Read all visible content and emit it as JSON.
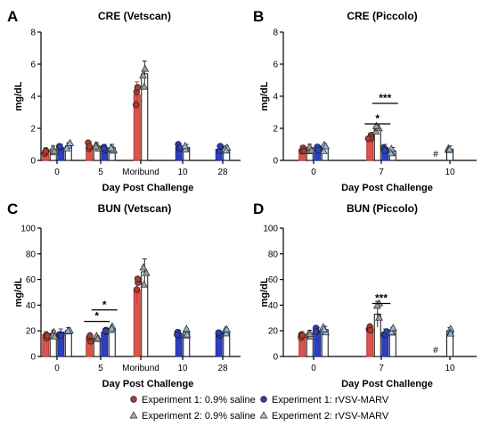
{
  "chart_data": [
    {
      "panel": "A",
      "title": "CRE (Vetscan)",
      "type": "bar",
      "xlabel": "Day Post Challenge",
      "ylabel": "mg/dL",
      "ylim": [
        0,
        8
      ],
      "yticks": [
        "0",
        "2",
        "4",
        "6",
        "8"
      ],
      "categories": [
        "0",
        "5",
        "Moribund",
        "10",
        "28"
      ],
      "series": [
        {
          "name": "Experiment 1: 0.9% saline",
          "values": [
            0.6,
            0.9,
            4.1,
            null,
            null
          ]
        },
        {
          "name": "Experiment 2: 0.9% saline",
          "values": [
            0.7,
            0.9,
            5.4,
            null,
            null
          ]
        },
        {
          "name": "Experiment 1: rVSV-MARV",
          "values": [
            0.8,
            0.8,
            null,
            0.8,
            0.7
          ]
        },
        {
          "name": "Experiment 2: rVSV-MARV",
          "values": [
            0.9,
            0.8,
            null,
            0.8,
            0.7
          ]
        }
      ],
      "significance": []
    },
    {
      "panel": "B",
      "title": "CRE (Piccolo)",
      "type": "bar",
      "xlabel": "Day Post Challenge",
      "ylabel": "mg/dL",
      "ylim": [
        0,
        8
      ],
      "yticks": [
        "0",
        "2",
        "4",
        "6",
        "8"
      ],
      "categories": [
        "0",
        "7",
        "10"
      ],
      "series": [
        {
          "name": "Experiment 1: 0.9% saline",
          "values": [
            0.7,
            1.5,
            null
          ]
        },
        {
          "name": "Experiment 2: 0.9% saline",
          "values": [
            0.8,
            2.0,
            null
          ]
        },
        {
          "name": "Experiment 1: rVSV-MARV",
          "values": [
            0.8,
            0.8,
            null
          ]
        },
        {
          "name": "Experiment 2: rVSV-MARV",
          "values": [
            0.8,
            0.6,
            0.7
          ]
        }
      ],
      "significance": [
        "*",
        "***"
      ],
      "annotations": [
        "#"
      ]
    },
    {
      "panel": "C",
      "title": "BUN (Vetscan)",
      "type": "bar",
      "xlabel": "Day Post Challenge",
      "ylabel": "mg/dL",
      "ylim": [
        0,
        100
      ],
      "yticks": [
        "0",
        "20",
        "40",
        "60",
        "80",
        "100"
      ],
      "categories": [
        "0",
        "5",
        "Moribund",
        "10",
        "28"
      ],
      "series": [
        {
          "name": "Experiment 1: 0.9% saline",
          "values": [
            17,
            14,
            52,
            null,
            null
          ]
        },
        {
          "name": "Experiment 2: 0.9% saline",
          "values": [
            18,
            14,
            66,
            null,
            null
          ]
        },
        {
          "name": "Experiment 1: rVSV-MARV",
          "values": [
            19,
            19,
            null,
            18,
            18
          ]
        },
        {
          "name": "Experiment 2: rVSV-MARV",
          "values": [
            20,
            21,
            null,
            19,
            19
          ]
        }
      ],
      "significance": [
        "*",
        "*"
      ]
    },
    {
      "panel": "D",
      "title": "BUN (Piccolo)",
      "type": "bar",
      "xlabel": "Day Post Challenge",
      "ylabel": "mg/dL",
      "ylim": [
        0,
        100
      ],
      "yticks": [
        "0",
        "20",
        "40",
        "60",
        "80",
        "100"
      ],
      "categories": [
        "0",
        "7",
        "10"
      ],
      "series": [
        {
          "name": "Experiment 1: 0.9% saline",
          "values": [
            17,
            22,
            null
          ]
        },
        {
          "name": "Experiment 2: 0.9% saline",
          "values": [
            18,
            33,
            null
          ]
        },
        {
          "name": "Experiment 1: rVSV-MARV",
          "values": [
            20,
            19,
            null
          ]
        },
        {
          "name": "Experiment 2: rVSV-MARV",
          "values": [
            21,
            20,
            20
          ]
        }
      ],
      "significance": [
        "***"
      ],
      "annotations": [
        "#"
      ]
    }
  ],
  "legend": [
    {
      "label": "Experiment 1: 0.9% saline",
      "marker": "circle",
      "color": "#c0392b"
    },
    {
      "label": "Experiment 2: 0.9% saline",
      "marker": "triangle",
      "color": "#b0b0b0"
    },
    {
      "label": "Experiment 1: rVSV-MARV",
      "marker": "circle",
      "color": "#2c3fbf"
    },
    {
      "label": "Experiment 2: rVSV-MARV",
      "marker": "triangle",
      "color": "#a8c8e0"
    }
  ],
  "colors": {
    "saline_exp1": "#d9534f",
    "saline_exp2": "#ffffff",
    "vaccine_exp1": "#2c3fbf",
    "vaccine_exp2": "#ffffff"
  }
}
